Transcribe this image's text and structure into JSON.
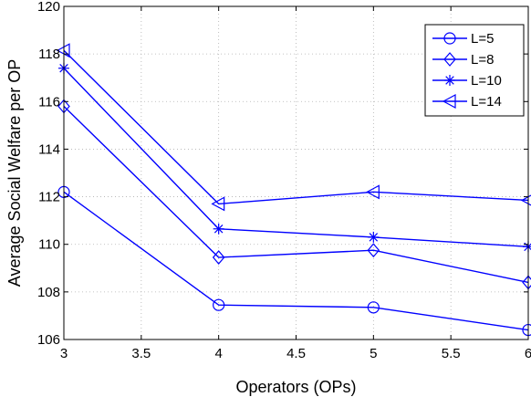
{
  "chart_data": {
    "type": "line",
    "title": "",
    "xlabel": "Operators (OPs)",
    "ylabel": "Average Social Welfare per OP",
    "xlim": [
      3,
      6
    ],
    "ylim": [
      106,
      120
    ],
    "x_ticks": [
      3,
      3.5,
      4,
      4.5,
      5,
      5.5,
      6
    ],
    "x_tick_labels": [
      "3",
      "3.5",
      "4",
      "4.5",
      "5",
      "5.5",
      "6"
    ],
    "y_ticks": [
      106,
      108,
      110,
      112,
      114,
      116,
      118,
      120
    ],
    "y_tick_labels": [
      "106",
      "108",
      "110",
      "112",
      "114",
      "116",
      "118",
      "120"
    ],
    "grid": true,
    "legend_position": "top-right",
    "line_color": "#0000ff",
    "x": [
      3,
      4,
      5,
      6
    ],
    "series": [
      {
        "name": "L=5",
        "marker": "circle",
        "values": [
          112.2,
          107.45,
          107.35,
          106.4
        ]
      },
      {
        "name": "L=8",
        "marker": "diamond",
        "values": [
          115.8,
          109.45,
          109.75,
          108.4
        ]
      },
      {
        "name": "L=10",
        "marker": "asterisk",
        "values": [
          117.4,
          110.65,
          110.3,
          109.9
        ]
      },
      {
        "name": "L=14",
        "marker": "triangle-left",
        "values": [
          118.15,
          111.7,
          112.2,
          111.85
        ]
      }
    ]
  }
}
